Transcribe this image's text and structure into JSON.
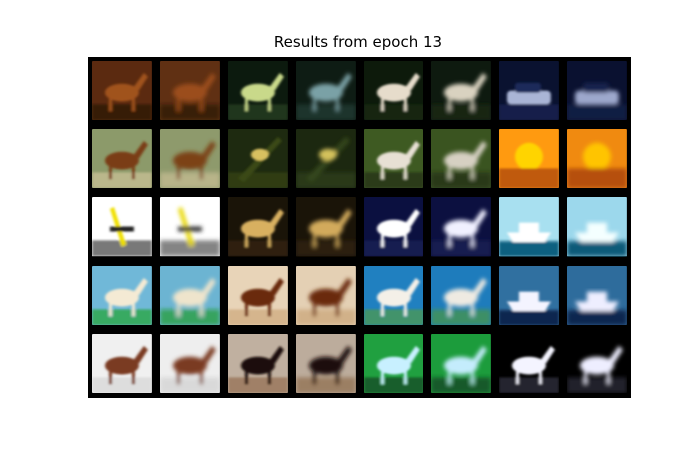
{
  "figure": {
    "title": "Results from epoch 13"
  },
  "images": {
    "rows": 5,
    "pairs_per_row": 4,
    "count": 40,
    "content": [
      [
        "horse",
        "horse-reconstruction",
        "deer",
        "deer-reconstruction",
        "deer",
        "deer-reconstruction",
        "car",
        "car-reconstruction"
      ],
      [
        "horse",
        "horse-reconstruction",
        "bird",
        "bird-reconstruction",
        "horse-rider",
        "horse-rider-reconstruction",
        "sunset",
        "sunset-reconstruction"
      ],
      [
        "airplane",
        "airplane-reconstruction",
        "dog",
        "dog-reconstruction",
        "dog",
        "dog-reconstruction",
        "ship",
        "ship-reconstruction"
      ],
      [
        "horse",
        "horse-reconstruction",
        "horse",
        "horse-reconstruction",
        "horse",
        "horse-reconstruction",
        "ship",
        "ship-reconstruction"
      ],
      [
        "horse",
        "horse-reconstruction",
        "horse-race",
        "horse-race-reconstruction",
        "horse-rearing",
        "horse-rearing-reconstruction",
        "horse-rearing",
        "horse-rearing-reconstruction"
      ]
    ]
  }
}
